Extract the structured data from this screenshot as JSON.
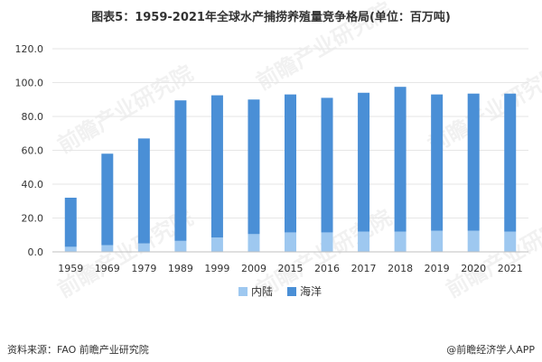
{
  "title": "图表5：1959-2021年全球水产捕捞养殖量竞争格局(单位：百万吨)",
  "footer": {
    "source": "资料来源：FAO 前瞻产业研究院",
    "brand": "@前瞻经济学人APP"
  },
  "watermark": "前瞻产业研究院",
  "colors": {
    "inland": "#9ec8f0",
    "marine": "#4a8fd6",
    "grid": "#e6e6e6",
    "axis": "#bfbfbf"
  },
  "chart_data": {
    "type": "bar",
    "stacked": true,
    "categories": [
      "1959",
      "1969",
      "1979",
      "1989",
      "1999",
      "2009",
      "2015",
      "2016",
      "2017",
      "2018",
      "2019",
      "2020",
      "2021"
    ],
    "series": [
      {
        "name": "内陆",
        "values": [
          3,
          4,
          5,
          6.5,
          8.5,
          10.5,
          11.5,
          11.5,
          12,
          12,
          12.5,
          12.5,
          12
        ]
      },
      {
        "name": "海洋",
        "values": [
          29,
          54,
          62,
          83,
          84,
          79.5,
          81.5,
          79.5,
          82,
          85.5,
          80.5,
          81,
          81.5
        ]
      }
    ],
    "yticks": [
      "0.0",
      "20.0",
      "40.0",
      "60.0",
      "80.0",
      "100.0",
      "120.0"
    ],
    "ylim": [
      0,
      120
    ],
    "legend": "bottom"
  }
}
